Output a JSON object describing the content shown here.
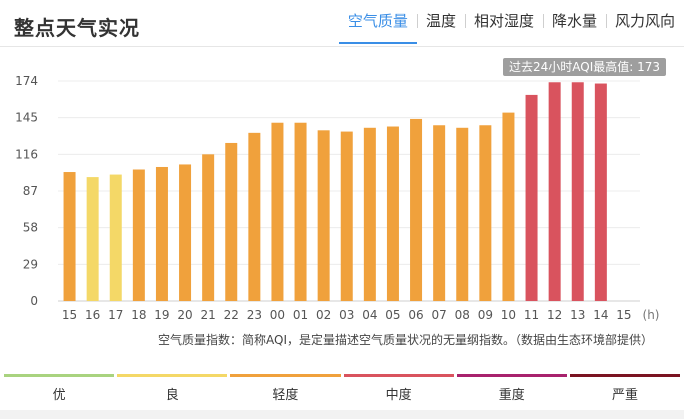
{
  "title": "整点天气实况",
  "tabs": [
    {
      "label": "空气质量",
      "active": true
    },
    {
      "label": "温度",
      "active": false
    },
    {
      "label": "相对湿度",
      "active": false
    },
    {
      "label": "降水量",
      "active": false
    },
    {
      "label": "风力风向",
      "active": false
    }
  ],
  "max_badge": "过去24小时AQI最高值: 173",
  "footnote": "空气质量指数：简称AQI，是定量描述空气质量状况的无量纲指数。（数据由生态环境部提供）",
  "chart_data": {
    "type": "bar",
    "categories": [
      "15",
      "16",
      "17",
      "18",
      "19",
      "20",
      "21",
      "22",
      "23",
      "00",
      "01",
      "02",
      "03",
      "04",
      "05",
      "06",
      "07",
      "08",
      "09",
      "10",
      "11",
      "12",
      "13",
      "14",
      "15"
    ],
    "values": [
      102,
      98,
      100,
      104,
      106,
      108,
      116,
      125,
      133,
      141,
      141,
      135,
      134,
      137,
      138,
      144,
      139,
      137,
      139,
      149,
      163,
      173,
      173,
      172,
      null
    ],
    "colors": [
      "#f0a13c",
      "#f4d867",
      "#f4d867",
      "#f0a13c",
      "#f0a13c",
      "#f0a13c",
      "#f0a13c",
      "#f0a13c",
      "#f0a13c",
      "#f0a13c",
      "#f0a13c",
      "#f0a13c",
      "#f0a13c",
      "#f0a13c",
      "#f0a13c",
      "#f0a13c",
      "#f0a13c",
      "#f0a13c",
      "#f0a13c",
      "#f0a13c",
      "#d9535e",
      "#d9535e",
      "#d9535e",
      "#d9535e",
      "#f0a13c"
    ],
    "yticks": [
      0,
      29,
      58,
      87,
      116,
      145,
      174
    ],
    "ylim": [
      0,
      174
    ],
    "x_unit": "(h)",
    "grid": true
  },
  "legend": [
    {
      "label": "优",
      "color": "#a9d37f"
    },
    {
      "label": "良",
      "color": "#f4d867"
    },
    {
      "label": "轻度",
      "color": "#f0a13c"
    },
    {
      "label": "中度",
      "color": "#d9535e"
    },
    {
      "label": "重度",
      "color": "#a8226d"
    },
    {
      "label": "严重",
      "color": "#7a1321"
    }
  ]
}
